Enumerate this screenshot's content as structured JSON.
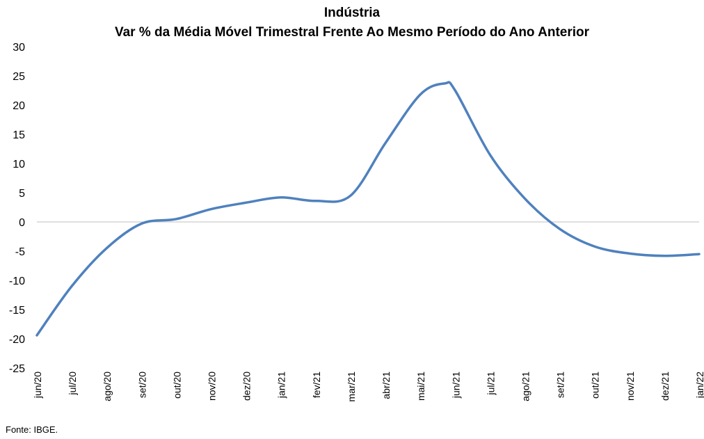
{
  "chart_data": {
    "type": "line",
    "title": "Indústria",
    "subtitle": "Var % da Média Móvel Trimestral Frente Ao Mesmo Período do Ano Anterior",
    "xlabel": "",
    "ylabel": "",
    "ylim": [
      -25,
      30
    ],
    "yticks": [
      -25,
      -20,
      -15,
      -10,
      -5,
      0,
      5,
      10,
      15,
      20,
      25,
      30
    ],
    "grid": false,
    "zero_line": true,
    "categories": [
      "jun/20",
      "jul/20",
      "ago/20",
      "set/20",
      "out/20",
      "nov/20",
      "dez/20",
      "jan/21",
      "fev/21",
      "mar/21",
      "abr/21",
      "mai/21",
      "jun/21",
      "jul/21",
      "ago/21",
      "set/21",
      "out/21",
      "nov/21",
      "dez/21",
      "jan/22"
    ],
    "x": [
      0,
      1,
      2,
      3,
      4,
      5,
      6,
      7,
      8,
      9,
      10,
      11,
      11.7,
      12,
      13,
      14,
      15,
      16,
      17,
      18,
      19
    ],
    "series": [
      {
        "name": "",
        "color": "#4f81bd",
        "points": [
          {
            "x": "jun/20",
            "y": -19.4
          },
          {
            "x": "jul/20",
            "y": -11.0
          },
          {
            "x": "ago/20",
            "y": -4.5
          },
          {
            "x": "set/20",
            "y": -0.3
          },
          {
            "x": "out/20",
            "y": 0.5
          },
          {
            "x": "nov/20",
            "y": 2.2
          },
          {
            "x": "dez/20",
            "y": 3.3
          },
          {
            "x": "jan/21",
            "y": 4.2
          },
          {
            "x": "fev/21",
            "y": 3.6
          },
          {
            "x": "mar/21",
            "y": 4.5
          },
          {
            "x": "abr/21",
            "y": 13.5
          },
          {
            "x": "mai/21",
            "y": 21.8
          },
          {
            "x": "mai/21–jun/21",
            "y": 23.7
          },
          {
            "x": "jun/21",
            "y": 22.5
          },
          {
            "x": "jul/21",
            "y": 11.5
          },
          {
            "x": "ago/21",
            "y": 4.0
          },
          {
            "x": "set/21",
            "y": -1.2
          },
          {
            "x": "out/21",
            "y": -4.2
          },
          {
            "x": "nov/21",
            "y": -5.4
          },
          {
            "x": "dez/21",
            "y": -5.8
          },
          {
            "x": "jan/22",
            "y": -5.5
          }
        ]
      }
    ]
  },
  "source": "Fonte: IBGE."
}
